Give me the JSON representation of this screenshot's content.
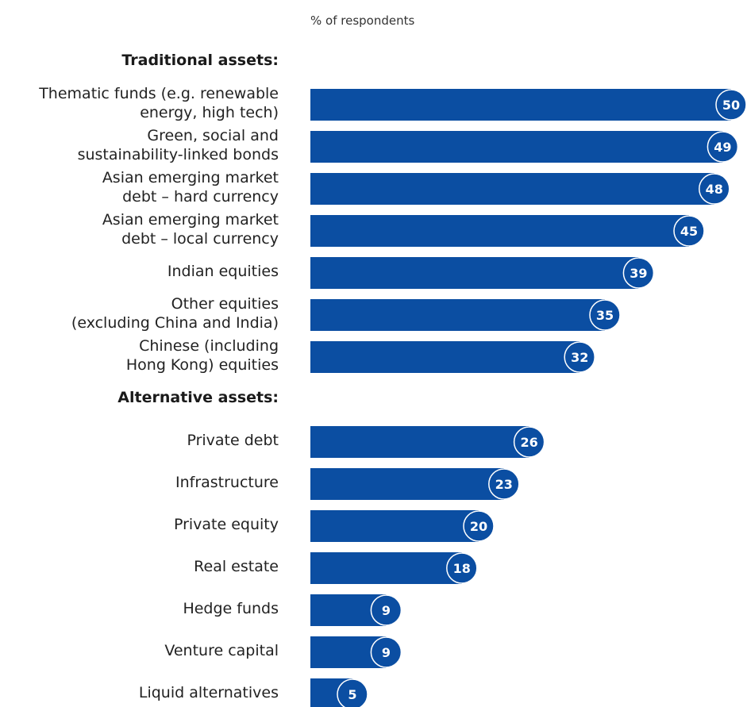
{
  "chart_data": {
    "type": "bar",
    "orientation": "horizontal",
    "unit_label": "% of respondents",
    "groups": [
      {
        "title": "Traditional assets:",
        "categories": [
          "Thematic funds (e.g. renewable\nenergy, high tech)",
          "Green, social and\nsustainability-linked bonds",
          "Asian emerging market\ndebt – hard currency",
          "Asian emerging market\ndebt – local currency",
          "Indian equities",
          "Other equities\n(excluding China and India)",
          "Chinese (including\nHong Kong) equities"
        ],
        "values": [
          50,
          49,
          48,
          45,
          39,
          35,
          32
        ]
      },
      {
        "title": "Alternative assets:",
        "categories": [
          "Private debt",
          "Infrastructure",
          "Private equity",
          "Real estate",
          "Hedge funds",
          "Venture capital",
          "Liquid alternatives"
        ],
        "values": [
          26,
          23,
          20,
          18,
          9,
          9,
          5
        ]
      }
    ],
    "xlim": [
      0,
      50
    ],
    "bar_color": "#0b4ea2",
    "label_badge_color": "#0b4ea2",
    "label_text_color": "#ffffff"
  }
}
